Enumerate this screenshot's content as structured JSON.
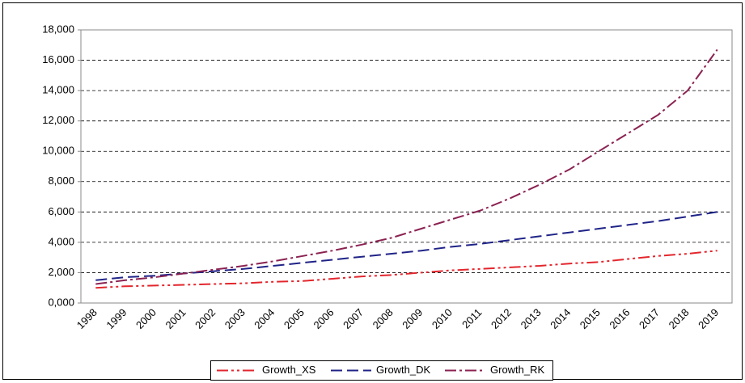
{
  "chart_data": {
    "type": "line",
    "x": [
      "1998",
      "1999",
      "2000",
      "2001",
      "2002",
      "2003",
      "2004",
      "2005",
      "2006",
      "2007",
      "2008",
      "2009",
      "2010",
      "2011",
      "2012",
      "2013",
      "2014",
      "2015",
      "2016",
      "2017",
      "2018",
      "2019"
    ],
    "series": [
      {
        "name": "Growth_XS",
        "color": "#e3262d",
        "dash": "14,4,3,4,3,4",
        "values": [
          1000,
          1100,
          1150,
          1200,
          1250,
          1300,
          1400,
          1450,
          1600,
          1750,
          1850,
          2000,
          2150,
          2250,
          2350,
          2450,
          2600,
          2700,
          2900,
          3100,
          3250,
          3450
        ]
      },
      {
        "name": "Growth_DK",
        "color": "#1f2387",
        "dash": "14,6",
        "values": [
          1500,
          1700,
          1800,
          1950,
          2100,
          2250,
          2450,
          2650,
          2850,
          3050,
          3250,
          3450,
          3700,
          3900,
          4150,
          4400,
          4650,
          4900,
          5150,
          5400,
          5700,
          6000
        ]
      },
      {
        "name": "Growth_RK",
        "color": "#8b2252",
        "dash": "14,4,3,4",
        "values": [
          1250,
          1500,
          1700,
          1950,
          2200,
          2450,
          2750,
          3100,
          3450,
          3850,
          4300,
          4900,
          5500,
          6100,
          6900,
          7800,
          8800,
          10000,
          11200,
          12400,
          14000,
          16700
        ]
      }
    ],
    "ylim": [
      0,
      18000
    ],
    "yticks": [
      {
        "value": 0,
        "label": "0,000"
      },
      {
        "value": 2000,
        "label": "2,000"
      },
      {
        "value": 4000,
        "label": "4,000"
      },
      {
        "value": 6000,
        "label": "6,000"
      },
      {
        "value": 8000,
        "label": "8,000"
      },
      {
        "value": 10000,
        "label": "10,000"
      },
      {
        "value": 12000,
        "label": "12,000"
      },
      {
        "value": 14000,
        "label": "14,000"
      },
      {
        "value": 16000,
        "label": "16,000"
      },
      {
        "value": 18000,
        "label": "18,000"
      }
    ],
    "grid": true,
    "legend": "bottom"
  }
}
